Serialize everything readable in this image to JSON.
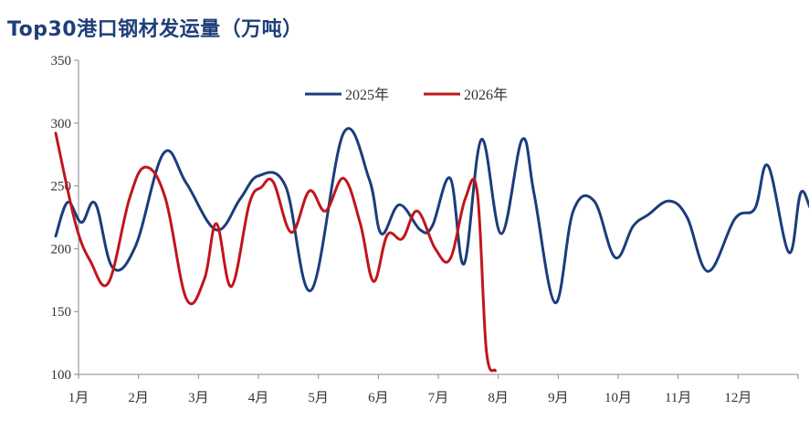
{
  "chart_data": {
    "type": "line",
    "title": "Top30港口钢材发运量（万吨）",
    "ylim": [
      100,
      350
    ],
    "yticks": [
      100,
      150,
      200,
      250,
      300,
      350
    ],
    "xticks": [
      "1月",
      "2月",
      "3月",
      "4月",
      "5月",
      "6月",
      "7月",
      "8月",
      "9月",
      "10月",
      "11月",
      "12月"
    ],
    "grid": false,
    "legend_position": "top-center",
    "series": [
      {
        "name": "2025年",
        "color": "#1a3d7c",
        "x": [
          0.12,
          0.32,
          0.55,
          0.78,
          1.07,
          1.45,
          1.92,
          2.3,
          2.8,
          3.2,
          3.5,
          3.95,
          4.38,
          4.92,
          5.35,
          5.55,
          5.85,
          6.2,
          6.4,
          6.7,
          6.93,
          7.22,
          7.55,
          7.9,
          8.1,
          8.45,
          8.75,
          9.1,
          9.45,
          9.75,
          10.0,
          10.35,
          10.65,
          11.0,
          11.45,
          11.78,
          12.0,
          12.35,
          12.55,
          12.78,
          13.05
        ],
        "values": [
          210,
          237,
          221,
          236,
          185,
          202,
          276,
          252,
          215,
          240,
          258,
          250,
          167,
          292,
          255,
          212,
          235,
          215,
          218,
          256,
          188,
          287,
          212,
          287,
          243,
          157,
          230,
          238,
          193,
          218,
          227,
          238,
          225,
          182,
          224,
          232,
          266,
          197,
          245,
          229,
          265
        ]
      },
      {
        "name": "2026年",
        "color": "#c0161c",
        "x": [
          0.12,
          0.45,
          0.7,
          1.0,
          1.35,
          1.62,
          1.95,
          2.3,
          2.6,
          2.8,
          3.05,
          3.35,
          3.55,
          3.75,
          4.05,
          4.35,
          4.62,
          4.92,
          5.2,
          5.42,
          5.65,
          5.9,
          6.15,
          6.45,
          6.7,
          6.95,
          7.15,
          7.3,
          7.45
        ],
        "values": [
          292,
          220,
          190,
          173,
          240,
          265,
          240,
          160,
          176,
          220,
          170,
          236,
          249,
          253,
          213,
          246,
          230,
          256,
          220,
          174,
          211,
          208,
          230,
          200,
          192,
          240,
          245,
          120,
          103
        ]
      }
    ]
  }
}
